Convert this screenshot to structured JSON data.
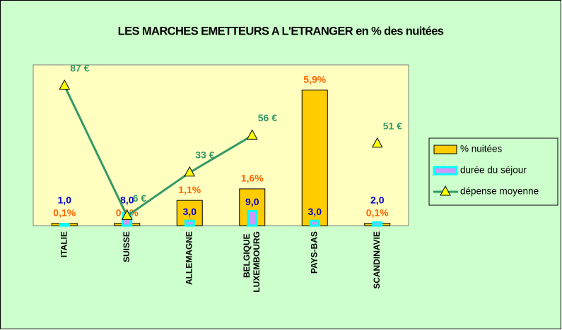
{
  "chart_data": {
    "type": "bar",
    "title": "LES MARCHES EMETTEURS A L'ETRANGER en % des nuitées",
    "categories": [
      "ITALIE",
      "SUISSE",
      "ALLEMAGNE",
      "BELGIQUE LUXEMBOURG",
      "PAYS-BAS",
      "SCANDINAVIE"
    ],
    "ylim": [
      0,
      7
    ],
    "y2lim": [
      0,
      100
    ],
    "legend": "right",
    "series": [
      {
        "name": "% nuitées",
        "type": "bar",
        "color": "#ffcc00",
        "label_color": "#ff6600",
        "values": [
          0.1,
          0.1,
          1.1,
          1.6,
          5.9,
          0.1
        ],
        "value_labels": [
          "0,1%",
          "0,1%",
          "1,1%",
          "1,6%",
          "5,9%",
          "0,1%"
        ]
      },
      {
        "name": "durée du séjour",
        "type": "bar",
        "axis": "y2",
        "color": "#cc99ff",
        "border_color": "#00ffff",
        "label_color": "#0000cc",
        "values": [
          1.0,
          8.0,
          3.0,
          9.0,
          3.0,
          2.0
        ],
        "value_labels": [
          "1,0",
          "8,0",
          "3,0",
          "9,0",
          "3,0",
          "2,0"
        ]
      },
      {
        "name": "dépense moyenne",
        "type": "line",
        "axis": "y2",
        "color": "#339966",
        "marker_color": "#ffff00",
        "label_color": "#339966",
        "values": [
          87,
          6,
          33,
          56,
          null,
          51
        ],
        "value_labels": [
          "87 €",
          "6 €",
          "33 €",
          "56 €",
          null,
          "51 €"
        ]
      }
    ]
  }
}
